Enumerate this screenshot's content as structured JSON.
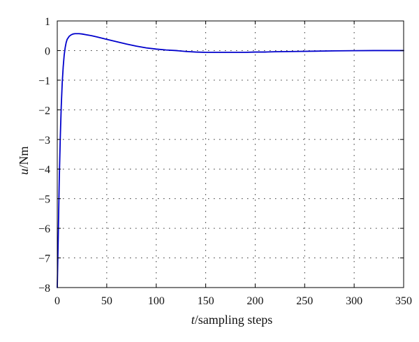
{
  "colors": {
    "background": "#ffffff",
    "axis": "#000000",
    "grid": "#333333",
    "series": "#0000cc"
  },
  "chart_data": {
    "type": "line",
    "title": "",
    "xlabel": {
      "variable": "t",
      "suffix": "/sampling steps"
    },
    "ylabel": {
      "variable": "u",
      "suffix": "/Nm"
    },
    "xlim": [
      0,
      350
    ],
    "ylim": [
      -8,
      1
    ],
    "xticks": [
      0,
      50,
      100,
      150,
      200,
      250,
      300,
      350
    ],
    "yticks": [
      1,
      0,
      -1,
      -2,
      -3,
      -4,
      -5,
      -6,
      -7,
      -8
    ],
    "ytick_labels": [
      "1",
      "0",
      "−1",
      "−2",
      "−3",
      "−4",
      "−5",
      "−6",
      "−7",
      "−8"
    ],
    "grid": true,
    "series": [
      {
        "color": "#0000cc",
        "x": [
          0,
          1,
          2,
          3,
          4,
          5,
          6,
          7,
          8,
          9,
          10,
          12,
          14,
          16,
          18,
          20,
          22,
          25,
          30,
          35,
          40,
          50,
          60,
          70,
          80,
          90,
          100,
          110,
          120,
          130,
          140,
          150,
          160,
          170,
          180,
          190,
          200,
          210,
          220,
          240,
          260,
          280,
          300,
          320,
          340,
          350
        ],
        "y": [
          -8.0,
          -6.3,
          -4.4,
          -3.0,
          -1.9,
          -1.1,
          -0.55,
          -0.15,
          0.1,
          0.27,
          0.38,
          0.48,
          0.53,
          0.56,
          0.57,
          0.57,
          0.57,
          0.56,
          0.53,
          0.5,
          0.46,
          0.38,
          0.3,
          0.22,
          0.15,
          0.09,
          0.05,
          0.02,
          0.0,
          -0.03,
          -0.05,
          -0.06,
          -0.06,
          -0.06,
          -0.06,
          -0.06,
          -0.05,
          -0.05,
          -0.04,
          -0.03,
          -0.02,
          -0.01,
          -0.005,
          0.0,
          0.0,
          0.0
        ]
      }
    ]
  }
}
